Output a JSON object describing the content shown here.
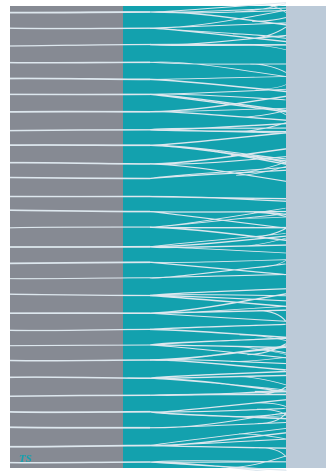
{
  "artwork": {
    "colors": {
      "page_background": "#ffffff",
      "left_panel": "#868a93",
      "middle_panel": "#13a1ae",
      "right_panel": "#bccad8",
      "lines": "#dde7ee",
      "monogram": "#13a1ae"
    },
    "monogram": "TS",
    "branch_count": 28
  }
}
